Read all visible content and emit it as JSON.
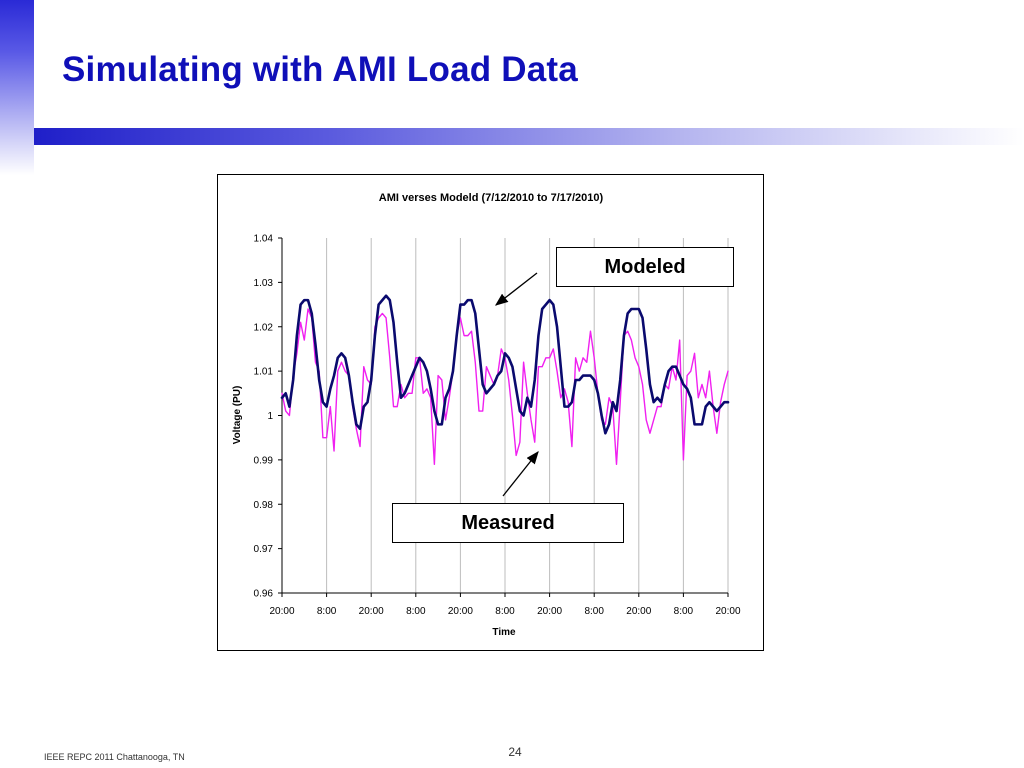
{
  "slide": {
    "title": "Simulating with AMI Load Data",
    "footer": "IEEE REPC 2011 Chattanooga, TN",
    "page_number": "24",
    "title_color": "#0f0fb8"
  },
  "callouts": {
    "modeled": "Modeled",
    "measured": "Measured"
  },
  "chart_data": {
    "type": "line",
    "title": "AMI verses Modeld (7/12/2010 to 7/17/2010)",
    "xlabel": "Time",
    "ylabel": "Voltage (PU)",
    "ylim": [
      0.96,
      1.04
    ],
    "yticks": [
      "0.96",
      "0.97",
      "0.98",
      "0.99",
      "1",
      "1.01",
      "1.02",
      "1.03",
      "1.04"
    ],
    "xlim_hours": [
      0,
      120
    ],
    "xtick_labels": [
      "20:00",
      "8:00",
      "20:00",
      "8:00",
      "20:00",
      "8:00",
      "20:00",
      "8:00",
      "20:00",
      "8:00",
      "20:00"
    ],
    "grid": "vertical",
    "legend": "none",
    "series": [
      {
        "name": "Modeled",
        "color": "#0a0a6e",
        "x": [
          0,
          1,
          2,
          3,
          4,
          5,
          6,
          7,
          8,
          9,
          10,
          11,
          12,
          13,
          14,
          15,
          16,
          17,
          18,
          19,
          20,
          21,
          22,
          23,
          24,
          25,
          26,
          27,
          28,
          29,
          30,
          31,
          32,
          33,
          34,
          35,
          36,
          37,
          38,
          39,
          40,
          41,
          42,
          43,
          44,
          45,
          46,
          47,
          48,
          49,
          50,
          51,
          52,
          53,
          54,
          55,
          56,
          57,
          58,
          59,
          60,
          61,
          62,
          63,
          64,
          65,
          66,
          67,
          68,
          69,
          70,
          71,
          72,
          73,
          74,
          75,
          76,
          77,
          78,
          79,
          80,
          81,
          82,
          83,
          84,
          85,
          86,
          87,
          88,
          89,
          90,
          91,
          92,
          93,
          94,
          95,
          96,
          97,
          98,
          99,
          100,
          101,
          102,
          103,
          104,
          105,
          106,
          107,
          108,
          109,
          110,
          111,
          112,
          113,
          114,
          115,
          116,
          117,
          118,
          119,
          120
        ],
        "values": [
          1.004,
          1.005,
          1.002,
          1.008,
          1.018,
          1.025,
          1.026,
          1.026,
          1.023,
          1.016,
          1.008,
          1.003,
          1.002,
          1.006,
          1.009,
          1.013,
          1.014,
          1.013,
          1.009,
          1.003,
          0.998,
          0.997,
          1.002,
          1.003,
          1.008,
          1.018,
          1.025,
          1.026,
          1.027,
          1.026,
          1.021,
          1.012,
          1.004,
          1.005,
          1.007,
          1.009,
          1.011,
          1.013,
          1.012,
          1.01,
          1.006,
          1.001,
          0.998,
          0.998,
          1.004,
          1.006,
          1.01,
          1.018,
          1.025,
          1.025,
          1.026,
          1.026,
          1.023,
          1.015,
          1.007,
          1.005,
          1.006,
          1.007,
          1.009,
          1.01,
          1.014,
          1.013,
          1.011,
          1.006,
          1.001,
          1.0,
          1.004,
          1.002,
          1.008,
          1.018,
          1.024,
          1.025,
          1.026,
          1.025,
          1.02,
          1.011,
          1.002,
          1.002,
          1.003,
          1.008,
          1.008,
          1.009,
          1.009,
          1.009,
          1.008,
          1.005,
          1.0,
          0.996,
          0.998,
          1.003,
          1.001,
          1.008,
          1.018,
          1.023,
          1.024,
          1.024,
          1.024,
          1.022,
          1.015,
          1.007,
          1.003,
          1.004,
          1.003,
          1.007,
          1.01,
          1.011,
          1.011,
          1.009,
          1.007,
          1.006,
          1.004,
          0.998,
          0.998,
          0.998,
          1.002,
          1.003,
          1.002,
          1.001,
          1.002,
          1.003,
          1.003
        ]
      },
      {
        "name": "Measured",
        "color": "#f020f0",
        "x": [
          0,
          1,
          2,
          3,
          4,
          5,
          6,
          7,
          8,
          9,
          10,
          11,
          12,
          13,
          14,
          15,
          16,
          17,
          18,
          19,
          20,
          21,
          22,
          23,
          24,
          25,
          26,
          27,
          28,
          29,
          30,
          31,
          32,
          33,
          34,
          35,
          36,
          37,
          38,
          39,
          40,
          41,
          42,
          43,
          44,
          45,
          46,
          47,
          48,
          49,
          50,
          51,
          52,
          53,
          54,
          55,
          56,
          57,
          58,
          59,
          60,
          61,
          62,
          63,
          64,
          65,
          66,
          67,
          68,
          69,
          70,
          71,
          72,
          73,
          74,
          75,
          76,
          77,
          78,
          79,
          80,
          81,
          82,
          83,
          84,
          85,
          86,
          87,
          88,
          89,
          90,
          91,
          92,
          93,
          94,
          95,
          96,
          97,
          98,
          99,
          100,
          101,
          102,
          103,
          104,
          105,
          106,
          107,
          108,
          109,
          110,
          111,
          112,
          113,
          114,
          115,
          116,
          117,
          118,
          119,
          120
        ],
        "values": [
          1.005,
          1.001,
          1.0,
          1.009,
          1.014,
          1.021,
          1.017,
          1.024,
          1.022,
          1.012,
          1.01,
          0.995,
          0.995,
          1.002,
          0.992,
          1.01,
          1.012,
          1.01,
          1.009,
          1.002,
          0.997,
          0.993,
          1.011,
          1.008,
          1.007,
          1.02,
          1.022,
          1.023,
          1.022,
          1.013,
          1.002,
          1.002,
          1.007,
          1.004,
          1.005,
          1.005,
          1.013,
          1.013,
          1.005,
          1.006,
          1.004,
          0.989,
          1.009,
          1.008,
          0.999,
          1.004,
          1.01,
          1.018,
          1.022,
          1.018,
          1.018,
          1.019,
          1.012,
          1.001,
          1.001,
          1.011,
          1.009,
          1.007,
          1.009,
          1.015,
          1.013,
          1.008,
          1.0,
          0.991,
          0.994,
          1.012,
          1.005,
          0.999,
          0.994,
          1.011,
          1.011,
          1.013,
          1.013,
          1.015,
          1.01,
          1.004,
          1.006,
          1.003,
          0.993,
          1.013,
          1.01,
          1.013,
          1.012,
          1.019,
          1.013,
          1.005,
          0.999,
          0.998,
          1.004,
          1.002,
          0.989,
          1.003,
          1.018,
          1.019,
          1.017,
          1.013,
          1.011,
          1.007,
          0.999,
          0.996,
          0.999,
          1.002,
          1.002,
          1.007,
          1.006,
          1.011,
          1.008,
          1.017,
          0.99,
          1.009,
          1.01,
          1.014,
          1.004,
          1.007,
          1.004,
          1.01,
          1.002,
          0.996,
          1.003,
          1.007,
          1.01
        ]
      }
    ]
  }
}
